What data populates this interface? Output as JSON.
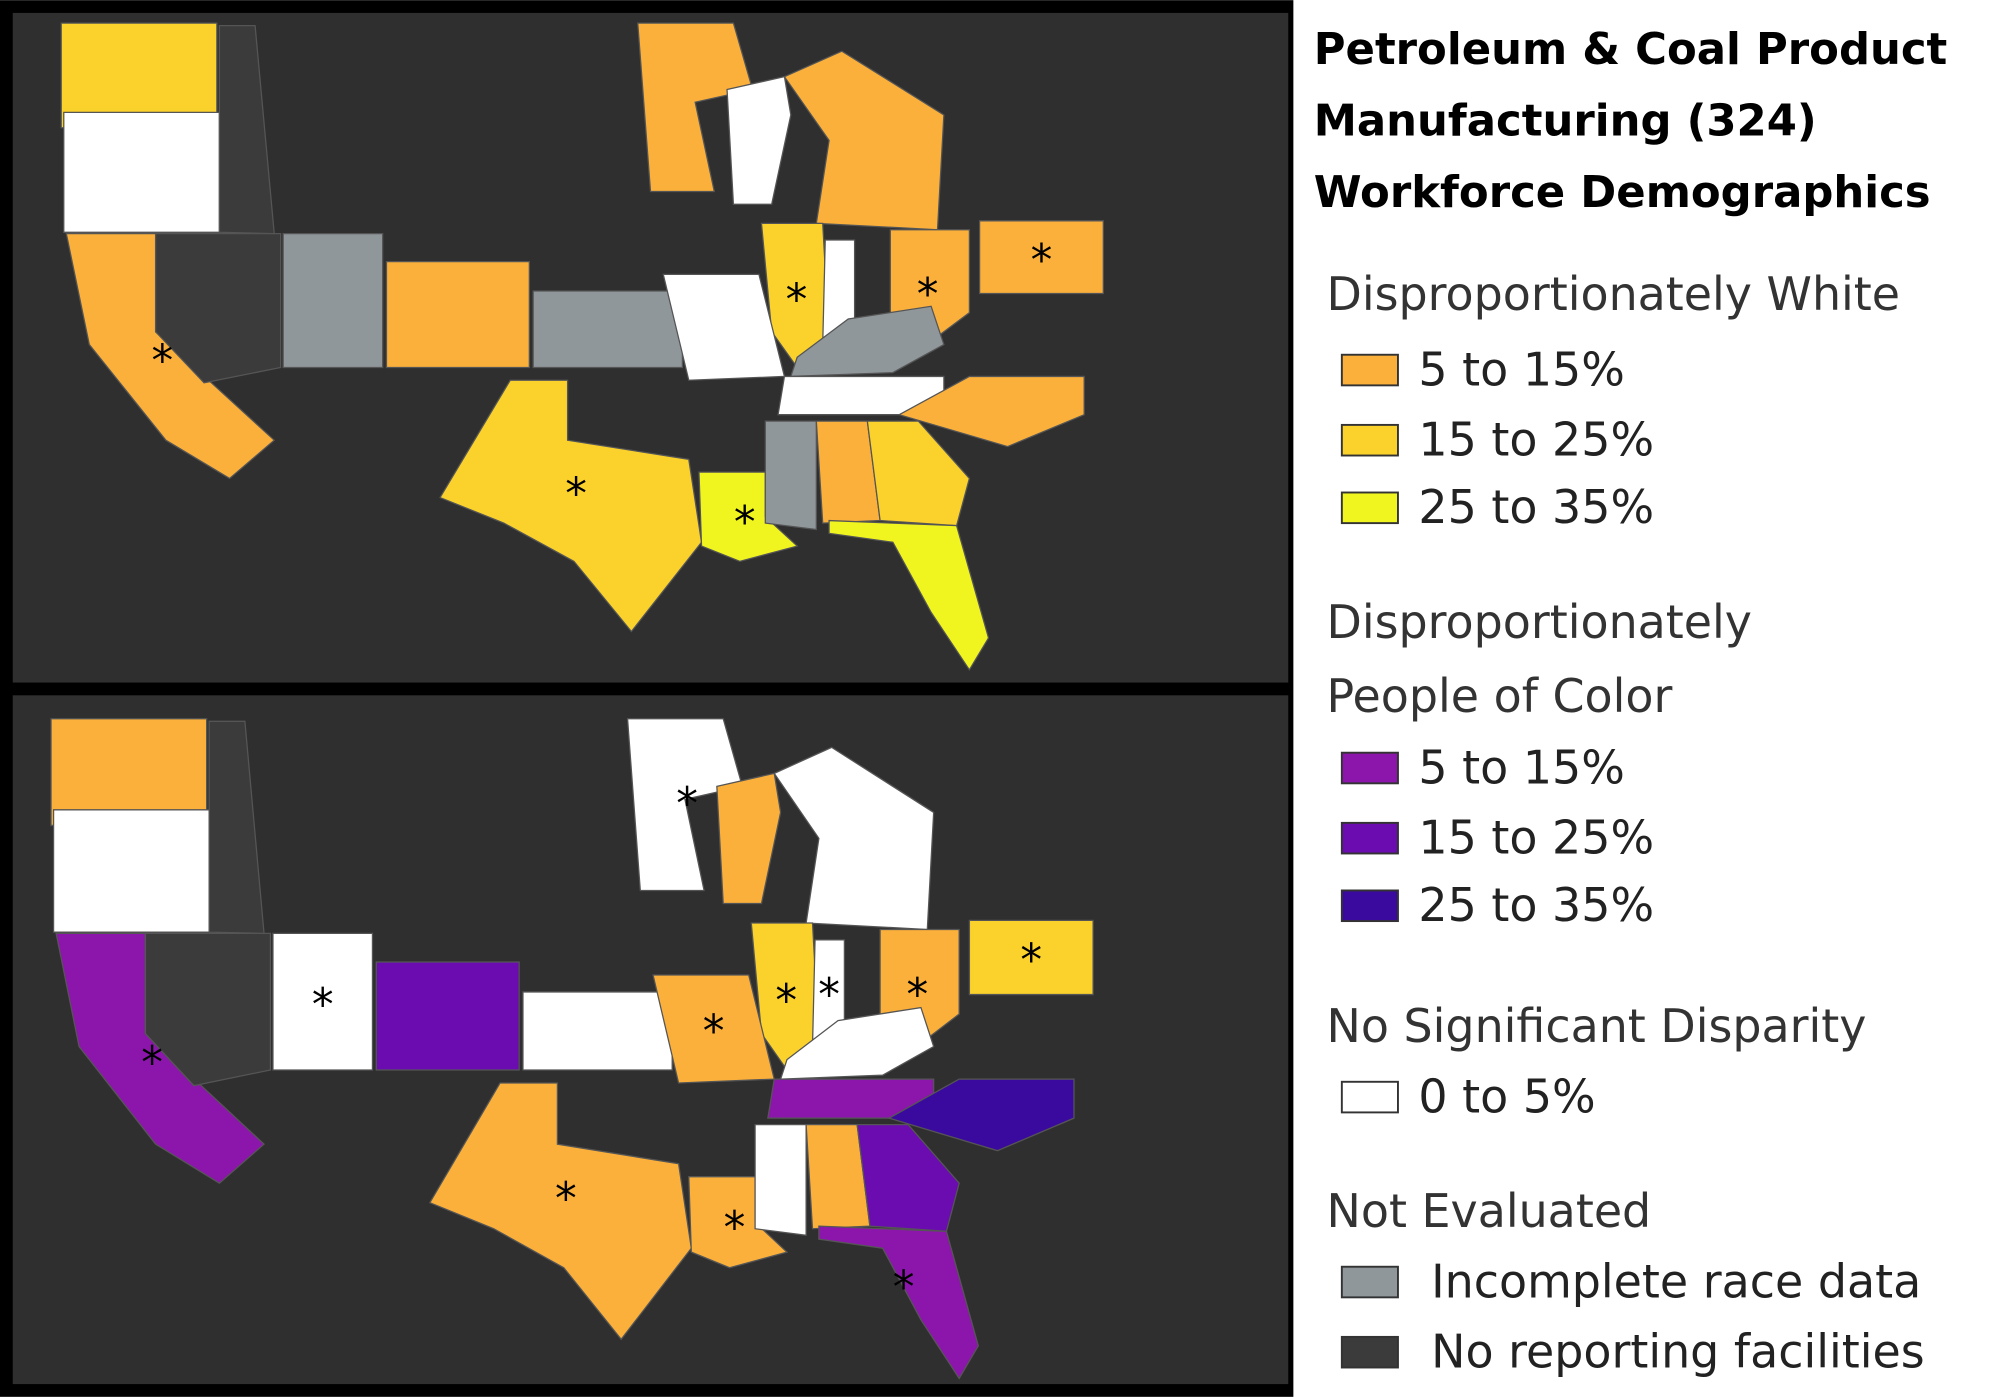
{
  "title": [
    "Petroleum & Coal Product",
    "Manufacturing (324)",
    "Workforce Demographics"
  ],
  "legend": {
    "groups": [
      {
        "heading": [
          "Disproportionately White"
        ],
        "items": [
          {
            "label": "5 to 15%",
            "color": "#fbb03b"
          },
          {
            "label": "15 to 25%",
            "color": "#fbd22c"
          },
          {
            "label": "25 to 35%",
            "color": "#f1f51f"
          }
        ]
      },
      {
        "heading": [
          "Disproportionately",
          "People of Color"
        ],
        "items": [
          {
            "label": "5 to 15%",
            "color": "#8c16ac"
          },
          {
            "label": "15 to 25%",
            "color": "#6a0cb0"
          },
          {
            "label": "25 to 35%",
            "color": "#3a0a9e"
          }
        ]
      },
      {
        "heading": [
          "No Significant Disparity"
        ],
        "items": [
          {
            "label": "0 to 5%",
            "color": "#ffffff"
          }
        ]
      },
      {
        "heading": [
          "Not Evaluated"
        ],
        "items": [
          {
            "label": "Incomplete race data",
            "color": "#8f979b"
          },
          {
            "label": "No reporting facilities",
            "color": "#3b3b3b"
          }
        ]
      }
    ]
  },
  "maps": {
    "marker": "*"
  }
}
